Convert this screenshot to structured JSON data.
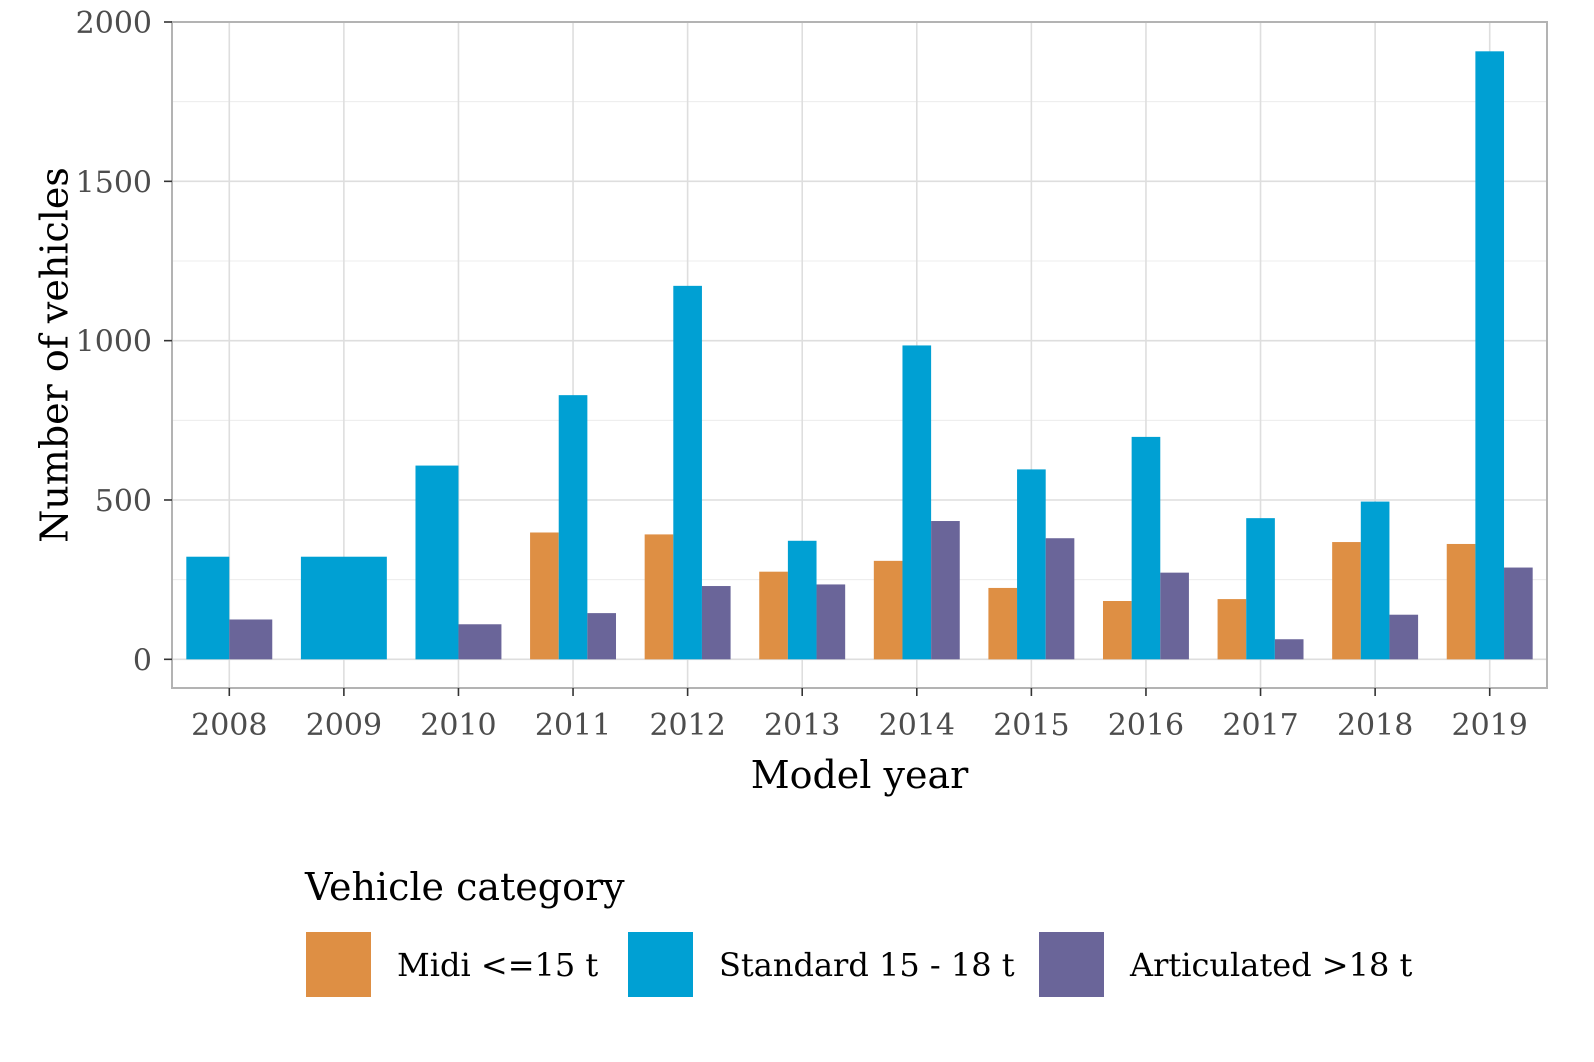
{
  "chart_data": {
    "type": "bar",
    "title": "",
    "xlabel": "Model year",
    "ylabel": "Number of vehicles",
    "ylim": [
      -90,
      2000
    ],
    "yticks": [
      0,
      500,
      1000,
      1500,
      2000
    ],
    "grid": true,
    "legend_title": "Vehicle category",
    "legend_position": "bottom",
    "categories": [
      "2008",
      "2009",
      "2010",
      "2011",
      "2012",
      "2013",
      "2014",
      "2015",
      "2016",
      "2017",
      "2018",
      "2019"
    ],
    "series": [
      {
        "name": "Midi <=15 t",
        "color": "#de8f44",
        "values": [
          null,
          null,
          null,
          398,
          392,
          275,
          309,
          224,
          183,
          189,
          368,
          362
        ]
      },
      {
        "name": "Standard 15 - 18 t",
        "color": "#00a0d3",
        "values": [
          322,
          322,
          608,
          829,
          1172,
          372,
          985,
          596,
          698,
          443,
          495,
          1908
        ]
      },
      {
        "name": "Articulated >18 t",
        "color": "#6a6599",
        "values": [
          125,
          null,
          110,
          145,
          230,
          235,
          434,
          380,
          272,
          63,
          140,
          288
        ]
      }
    ]
  }
}
